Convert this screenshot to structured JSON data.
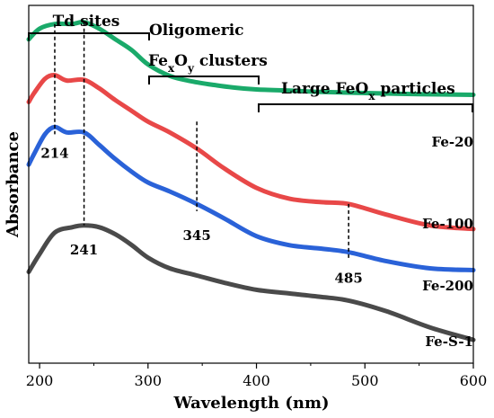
{
  "chart_data": {
    "type": "line",
    "title": "",
    "xlabel": "Wavelength (nm)",
    "ylabel": "Absorbance",
    "xlim": [
      190,
      600
    ],
    "xticks": [
      "200",
      "300",
      "400",
      "500",
      "600"
    ],
    "grid": false,
    "series": [
      {
        "name": "Fe-20",
        "color": "#1aaa6a",
        "x": [
          190,
          200,
          214,
          230,
          241,
          255,
          270,
          285,
          300,
          320,
          340,
          360,
          380,
          400,
          430,
          460,
          500,
          550,
          600
        ],
        "y": [
          0.905,
          0.935,
          0.948,
          0.948,
          0.953,
          0.935,
          0.905,
          0.875,
          0.835,
          0.803,
          0.788,
          0.778,
          0.77,
          0.765,
          0.762,
          0.758,
          0.755,
          0.752,
          0.75
        ]
      },
      {
        "name": "Fe-100",
        "color": "#e84848",
        "x": [
          190,
          195,
          205,
          214,
          225,
          241,
          255,
          270,
          285,
          300,
          320,
          345,
          370,
          400,
          430,
          460,
          485,
          520,
          560,
          600
        ],
        "y": [
          0.73,
          0.755,
          0.795,
          0.805,
          0.79,
          0.792,
          0.768,
          0.735,
          0.705,
          0.675,
          0.645,
          0.6,
          0.545,
          0.49,
          0.46,
          0.45,
          0.445,
          0.415,
          0.385,
          0.375
        ]
      },
      {
        "name": "Fe-200",
        "color": "#2a62d8",
        "x": [
          190,
          195,
          205,
          214,
          225,
          241,
          255,
          270,
          285,
          300,
          320,
          345,
          370,
          400,
          430,
          460,
          485,
          520,
          560,
          600
        ],
        "y": [
          0.555,
          0.585,
          0.64,
          0.66,
          0.645,
          0.645,
          0.61,
          0.57,
          0.535,
          0.505,
          0.48,
          0.445,
          0.405,
          0.355,
          0.33,
          0.32,
          0.31,
          0.285,
          0.265,
          0.26
        ]
      },
      {
        "name": "Fe-S-1",
        "color": "#4a4a4a",
        "x": [
          190,
          200,
          214,
          230,
          241,
          255,
          270,
          285,
          300,
          320,
          345,
          370,
          400,
          430,
          460,
          485,
          520,
          560,
          600
        ],
        "y": [
          0.255,
          0.305,
          0.365,
          0.38,
          0.385,
          0.38,
          0.36,
          0.33,
          0.295,
          0.265,
          0.245,
          0.225,
          0.205,
          0.195,
          0.185,
          0.175,
          0.145,
          0.1,
          0.065
        ]
      }
    ],
    "series_labels": [
      {
        "text": "Fe-20",
        "series": "Fe-20"
      },
      {
        "text": "Fe-100",
        "series": "Fe-100"
      },
      {
        "text": "Fe-200",
        "series": "Fe-200"
      },
      {
        "text": "Fe-S-1",
        "series": "Fe-S-1"
      }
    ],
    "regions": [
      {
        "text": "Td sites",
        "from": 190,
        "to": 300
      },
      {
        "text": "Oligomeric",
        "from": null,
        "to": null
      },
      {
        "text": "FexOy clusters",
        "from": 300,
        "to": 400
      },
      {
        "text": "Large FeOx particles",
        "from": 400,
        "to": 600
      }
    ],
    "markers": [
      {
        "x": 214,
        "label": "214"
      },
      {
        "x": 241,
        "label": "241"
      },
      {
        "x": 345,
        "label": "345"
      },
      {
        "x": 485,
        "label": "485"
      }
    ]
  }
}
